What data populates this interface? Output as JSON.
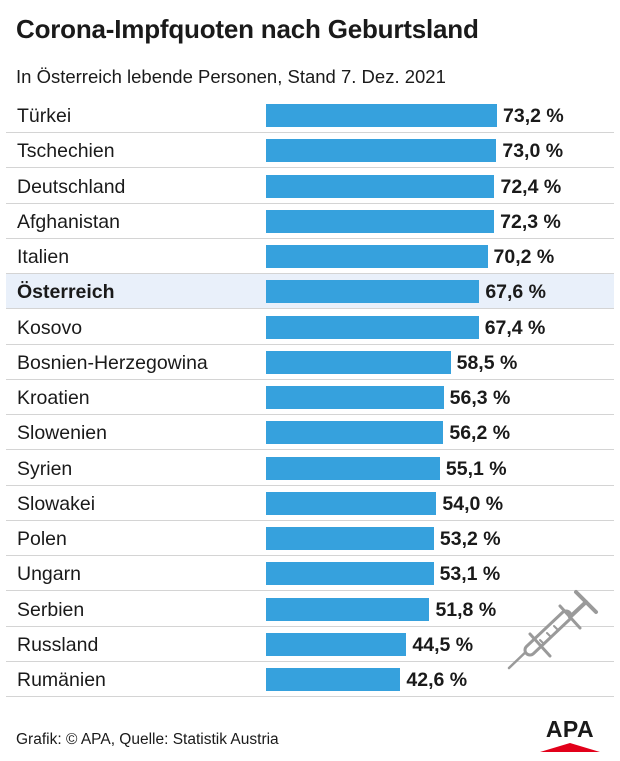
{
  "header": {
    "title": "Corona-Impfquoten nach Geburtsland",
    "subtitle": "In Österreich lebende Personen, Stand 7. Dez. 2021"
  },
  "footer": {
    "source": "Grafik: © APA, Quelle: Statistik Austria",
    "logo_text": "APA"
  },
  "colors": {
    "bar": "#36a1dd",
    "highlight_row": "#e9f0fa",
    "logo_accent": "#e2001a"
  },
  "icons": [
    "syringe-icon"
  ],
  "chart_data": {
    "type": "bar",
    "orientation": "horizontal",
    "categories": [
      "Türkei",
      "Tschechien",
      "Deutschland",
      "Afghanistan",
      "Italien",
      "Österreich",
      "Kosovo",
      "Bosnien-Herzegowina",
      "Kroatien",
      "Slowenien",
      "Syrien",
      "Slowakei",
      "Polen",
      "Ungarn",
      "Serbien",
      "Russland",
      "Rumänien"
    ],
    "values": [
      73.2,
      73.0,
      72.4,
      72.3,
      70.2,
      67.6,
      67.4,
      58.5,
      56.3,
      56.2,
      55.1,
      54.0,
      53.2,
      53.1,
      51.8,
      44.5,
      42.6
    ],
    "value_labels": [
      "73,2 %",
      "73,0 %",
      "72,4 %",
      "72,3 %",
      "70,2 %",
      "67,6 %",
      "67,4 %",
      "58,5 %",
      "56,3 %",
      "56,2 %",
      "55,1 %",
      "54,0 %",
      "53,2 %",
      "53,1 %",
      "51,8 %",
      "44,5 %",
      "42,6 %"
    ],
    "highlight": "Österreich",
    "title": "Corona-Impfquoten nach Geburtsland",
    "xlabel": "",
    "ylabel": "",
    "xlim": [
      0,
      73.2
    ],
    "grid": false,
    "legend": "none"
  }
}
